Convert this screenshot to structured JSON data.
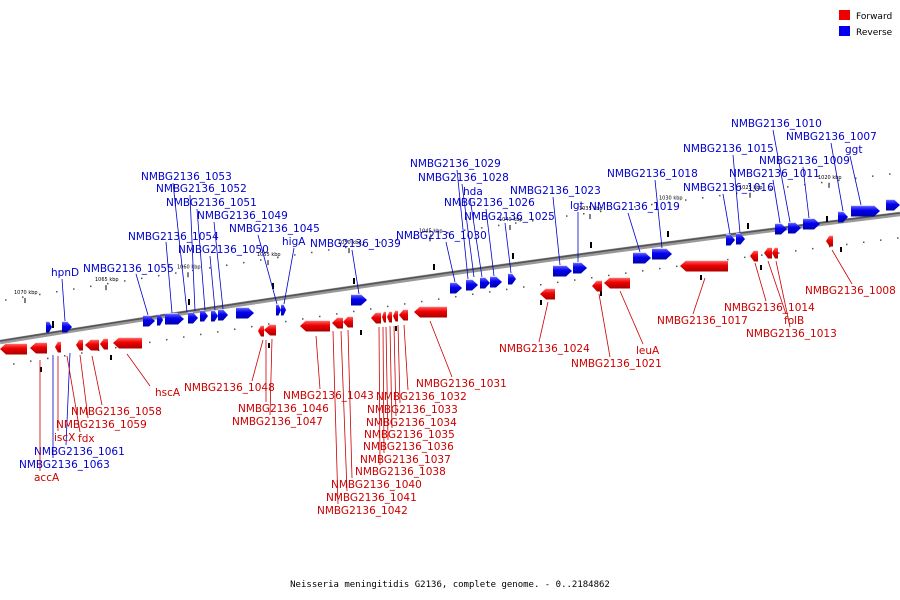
{
  "legend": {
    "forward": {
      "label": "Forward",
      "color": "#ee0000"
    },
    "reverse": {
      "label": "Reverse",
      "color": "#0000ee"
    }
  },
  "caption": "Neisseria meningitidis G2136, complete genome. - 0..2184862",
  "ticks": [
    "1070 kbp",
    "1065 kbp",
    "1060 kbp",
    "1055 kbp",
    "1050 kbp",
    "1045 kbp",
    "1040 kbp",
    "1035 kbp",
    "1030 kbp",
    "1025 kbp",
    "1020 kbp"
  ],
  "reverse_labels": [
    "hpnD",
    "NMBG2136_1055",
    "NMBG2136_1054",
    "NMBG2136_1053",
    "NMBG2136_1052",
    "NMBG2136_1051",
    "NMBG2136_1050",
    "NMBG2136_1049",
    "NMBG2136_1045",
    "higA",
    "NMBG2136_1039",
    "NMBG2136_1030",
    "NMBG2136_1029",
    "NMBG2136_1028",
    "hda",
    "NMBG2136_1026",
    "NMBG2136_1025",
    "NMBG2136_1023",
    "lgt",
    "NMBG2136_1019",
    "NMBG2136_1018",
    "NMBG2136_1016",
    "NMBG2136_1015",
    "NMBG2136_1011",
    "NMBG2136_1010",
    "NMBG2136_1009",
    "NMBG2136_1007",
    "ggt",
    "NMBG2136_1063",
    "NMBG2136_1061"
  ],
  "forward_labels": [
    "hscA",
    "NMBG2136_1058",
    "NMBG2136_1059",
    "fdx",
    "iscX",
    "accA",
    "NMBG2136_1048",
    "NMBG2136_1046",
    "NMBG2136_1047",
    "NMBG2136_1043",
    "NMBG2136_1031",
    "NMBG2136_1032",
    "NMBG2136_1033",
    "NMBG2136_1034",
    "NMBG2136_1035",
    "NMBG2136_1036",
    "NMBG2136_1037",
    "NMBG2136_1038",
    "NMBG2136_1040",
    "NMBG2136_1041",
    "NMBG2136_1042",
    "NMBG2136_1024",
    "NMBG2136_1021",
    "leuA",
    "NMBG2136_1017",
    "NMBG2136_1014",
    "folB",
    "NMBG2136_1013",
    "NMBG2136_1008"
  ]
}
